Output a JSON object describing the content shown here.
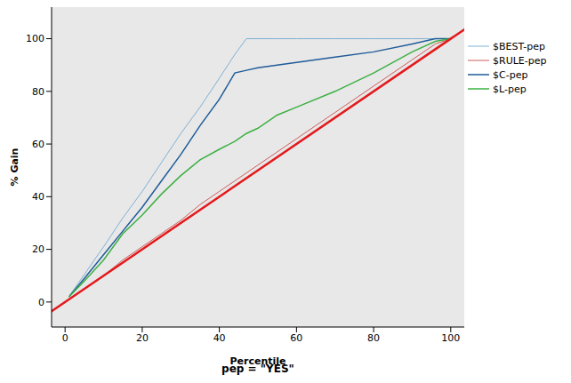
{
  "chart_data": {
    "type": "line",
    "title": "pep = \"YES\"",
    "x_label": "Percentile",
    "y_label": "% Gain",
    "x": [
      1,
      5,
      10,
      15,
      20,
      25,
      30,
      35,
      40,
      44,
      47,
      50,
      55,
      60,
      70,
      80,
      90,
      96,
      100
    ],
    "series": [
      {
        "name": "$BEST-pep",
        "color": "#7fb0d3",
        "values": [
          2,
          10.5,
          21,
          32,
          42,
          53,
          64,
          74,
          85,
          94,
          100,
          100,
          100,
          100,
          100,
          100,
          100,
          100,
          100
        ]
      },
      {
        "name": "$RULE-pep",
        "color": "#cd5c5c",
        "values": [
          1,
          5,
          10,
          16,
          21,
          26,
          31,
          37,
          42,
          46,
          49,
          52,
          57,
          62,
          72,
          82,
          92,
          98,
          100
        ]
      },
      {
        "name": "$C-pep",
        "color": "#1f5c99",
        "values": [
          2,
          9,
          18,
          27,
          36,
          46,
          56,
          67,
          77,
          87,
          88,
          89,
          90,
          91,
          93,
          95,
          98,
          100,
          100
        ]
      },
      {
        "name": "$L-pep",
        "color": "#3cb043",
        "values": [
          2,
          8,
          16,
          26,
          33,
          41,
          48,
          54,
          58,
          61,
          64,
          66,
          71,
          74,
          80,
          87,
          95,
          99,
          100
        ]
      }
    ],
    "reference_line": {
      "x": [
        -10,
        110
      ],
      "values": [
        -10,
        110
      ],
      "color": "#e31a1c"
    },
    "xlim": [
      -3.5,
      103.5
    ],
    "ylim": [
      -9.5,
      112
    ],
    "xticks": [
      0,
      20,
      40,
      60,
      80,
      100
    ],
    "yticks": [
      0,
      20,
      40,
      60,
      80,
      100
    ],
    "grid": false,
    "legend": "right"
  }
}
